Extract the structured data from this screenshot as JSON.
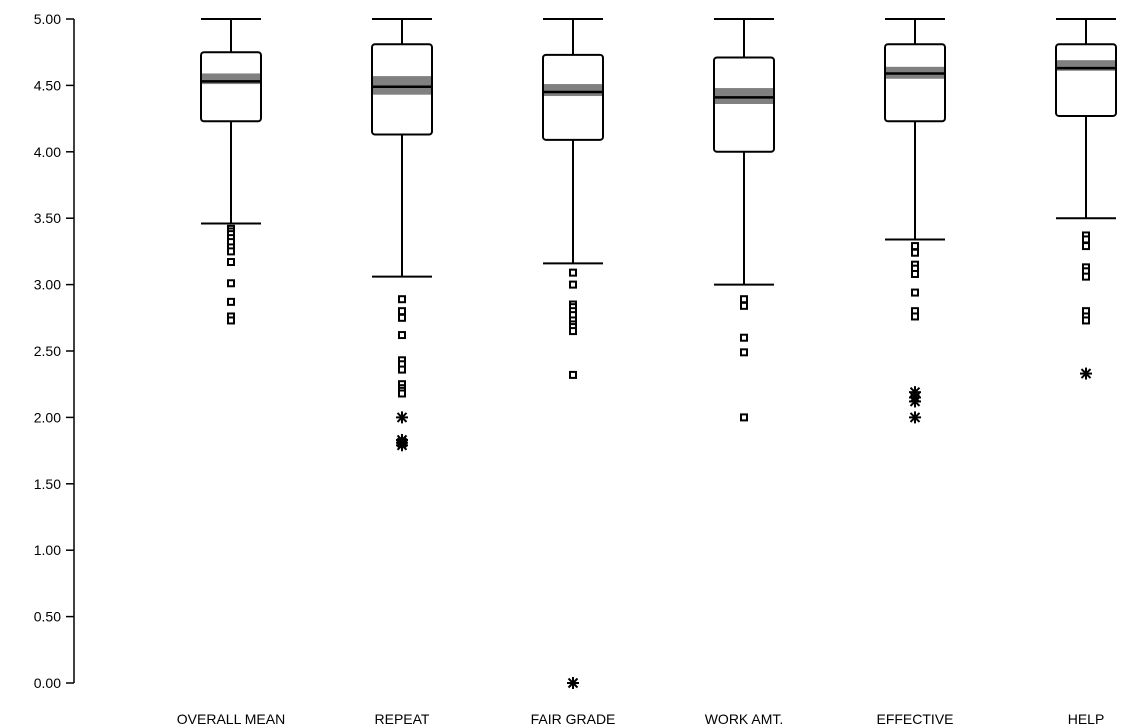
{
  "chart_data": {
    "type": "box",
    "title": "",
    "xlabel": "",
    "ylabel": "",
    "ylim": [
      0,
      5
    ],
    "yticks": [
      0,
      0.5,
      1,
      1.5,
      2,
      2.5,
      3,
      3.5,
      4,
      4.5,
      5
    ],
    "ytick_labels": [
      "0.00",
      "0.50",
      "1.00",
      "1.50",
      "2.00",
      "2.50",
      "3.00",
      "3.50",
      "4.00",
      "4.50",
      "5.00"
    ],
    "grid": false,
    "legend": "none",
    "box_fill": "#ffffff",
    "ci_band_color": "#808080",
    "categories": [
      "OVERALL MEAN",
      "REPEAT",
      "FAIR GRADE",
      "WORK AMT.",
      "EFFECTIVE",
      "HELP"
    ],
    "boxes": [
      {
        "whisker_low": 3.46,
        "q1": 4.23,
        "median": 4.53,
        "q3": 4.75,
        "whisker_high": 5.0,
        "ci_low": 4.51,
        "ci_high": 4.59,
        "outliers": [
          3.42,
          3.4,
          3.38,
          3.35,
          3.32,
          3.28,
          3.25,
          3.17,
          3.01,
          2.87,
          2.76,
          2.73
        ],
        "extremes": []
      },
      {
        "whisker_low": 3.06,
        "q1": 4.13,
        "median": 4.49,
        "q3": 4.81,
        "whisker_high": 5.0,
        "ci_low": 4.43,
        "ci_high": 4.57,
        "outliers": [
          2.89,
          2.8,
          2.75,
          2.62,
          2.43,
          2.4,
          2.36,
          2.25,
          2.22,
          2.2,
          2.18
        ],
        "extremes": [
          2.0,
          1.83,
          1.81,
          1.79
        ]
      },
      {
        "whisker_low": 3.16,
        "q1": 4.09,
        "median": 4.45,
        "q3": 4.73,
        "whisker_high": 5.0,
        "ci_low": 4.42,
        "ci_high": 4.51,
        "outliers": [
          3.09,
          3.0,
          2.85,
          2.83,
          2.8,
          2.77,
          2.73,
          2.7,
          2.68,
          2.65,
          2.32
        ],
        "extremes": [
          0.0
        ]
      },
      {
        "whisker_low": 3.0,
        "q1": 4.0,
        "median": 4.41,
        "q3": 4.71,
        "whisker_high": 5.0,
        "ci_low": 4.36,
        "ci_high": 4.48,
        "outliers": [
          2.89,
          2.84,
          2.6,
          2.49,
          2.0
        ],
        "extremes": []
      },
      {
        "whisker_low": 3.34,
        "q1": 4.23,
        "median": 4.59,
        "q3": 4.81,
        "whisker_high": 5.0,
        "ci_low": 4.55,
        "ci_high": 4.64,
        "outliers": [
          3.29,
          3.24,
          3.15,
          3.12,
          3.08,
          2.94,
          2.8,
          2.76
        ],
        "extremes": [
          2.19,
          2.15,
          2.12,
          2.0
        ]
      },
      {
        "whisker_low": 3.5,
        "q1": 4.27,
        "median": 4.63,
        "q3": 4.81,
        "whisker_high": 5.0,
        "ci_low": 4.61,
        "ci_high": 4.69,
        "outliers": [
          3.37,
          3.34,
          3.29,
          3.13,
          3.1,
          3.06,
          2.8,
          2.76,
          2.73
        ],
        "extremes": [
          2.33
        ]
      }
    ]
  }
}
